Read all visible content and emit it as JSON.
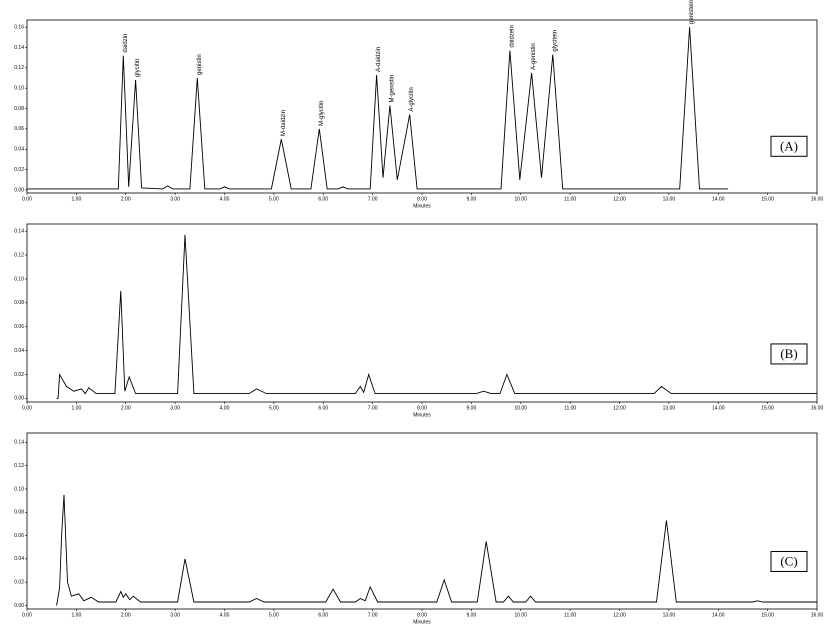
{
  "chart_data": [
    {
      "type": "line",
      "panel_label": "(A)",
      "x_label": "Minutes",
      "xlim": [
        0,
        16
      ],
      "ylim": [
        -0.003,
        0.167
      ],
      "xticks": [
        {
          "value": 0,
          "label": "0.00"
        },
        {
          "value": 1,
          "label": "1.00"
        },
        {
          "value": 2,
          "label": "2.00"
        },
        {
          "value": 3,
          "label": "3.00"
        },
        {
          "value": 4,
          "label": "4.00"
        },
        {
          "value": 5,
          "label": "5.00"
        },
        {
          "value": 6,
          "label": "6.00"
        },
        {
          "value": 7,
          "label": "7.00"
        },
        {
          "value": 8,
          "label": "8.00"
        },
        {
          "value": 9,
          "label": "9.00"
        },
        {
          "value": 10,
          "label": "10.00"
        },
        {
          "value": 11,
          "label": "11.00"
        },
        {
          "value": 12,
          "label": "12.00"
        },
        {
          "value": 13,
          "label": "13.00"
        },
        {
          "value": 14,
          "label": "14.00"
        },
        {
          "value": 15,
          "label": "15.00"
        },
        {
          "value": 16,
          "label": "16.00"
        }
      ],
      "yticks": [
        {
          "value": 0,
          "label": "0.00"
        },
        {
          "value": 0.02,
          "label": "0.02"
        },
        {
          "value": 0.04,
          "label": "0.04"
        },
        {
          "value": 0.06,
          "label": "0.06"
        },
        {
          "value": 0.08,
          "label": "0.08"
        },
        {
          "value": 0.1,
          "label": "0.10"
        },
        {
          "value": 0.12,
          "label": "0.12"
        },
        {
          "value": 0.14,
          "label": "0.14"
        },
        {
          "value": 0.16,
          "label": "0.16"
        }
      ],
      "color": "#000000",
      "x": [
        0,
        1.85,
        1.95,
        2.06,
        2.2,
        2.32,
        2.75,
        2.85,
        2.95,
        3.3,
        3.45,
        3.6,
        3.9,
        4.0,
        4.1,
        4.95,
        5.15,
        5.35,
        5.75,
        5.92,
        6.08,
        6.3,
        6.4,
        6.5,
        6.95,
        7.08,
        7.21,
        7.35,
        7.5,
        7.75,
        7.9,
        9.6,
        9.78,
        9.98,
        10.22,
        10.42,
        10.65,
        10.85,
        13.22,
        13.42,
        13.62,
        14.2
      ],
      "values": [
        0.001,
        0.001,
        0.132,
        0.003,
        0.108,
        0.002,
        0.001,
        0.004,
        0.001,
        0.001,
        0.11,
        0.001,
        0.001,
        0.003,
        0.001,
        0.001,
        0.05,
        0.001,
        0.001,
        0.06,
        0.001,
        0.001,
        0.003,
        0.001,
        0.001,
        0.113,
        0.012,
        0.083,
        0.01,
        0.074,
        0.001,
        0.001,
        0.137,
        0.01,
        0.115,
        0.012,
        0.133,
        0.001,
        0.001,
        0.16,
        0.001,
        0.001
      ],
      "annotations": [
        {
          "text": "daidzin",
          "x": 1.95
        },
        {
          "text": "glycitin",
          "x": 2.2
        },
        {
          "text": "genistin",
          "x": 3.45
        },
        {
          "text": "M-daidzin",
          "x": 5.15
        },
        {
          "text": "M-glycitin",
          "x": 5.92
        },
        {
          "text": "A-daidzin",
          "x": 7.08
        },
        {
          "text": "M-genistin",
          "x": 7.35
        },
        {
          "text": "A-glycitin",
          "x": 7.75
        },
        {
          "text": "daidzein",
          "x": 9.78
        },
        {
          "text": "A-genistin",
          "x": 10.22
        },
        {
          "text": "glycitein",
          "x": 10.65
        },
        {
          "text": "genistein",
          "x": 13.42
        }
      ]
    },
    {
      "type": "line",
      "panel_label": "(B)",
      "x_label": "Minutes",
      "xlim": [
        0,
        16
      ],
      "ylim": [
        -0.003,
        0.146
      ],
      "xticks": [
        {
          "value": 0,
          "label": "0.00"
        },
        {
          "value": 1,
          "label": "1.00"
        },
        {
          "value": 2,
          "label": "2.00"
        },
        {
          "value": 3,
          "label": "3.00"
        },
        {
          "value": 4,
          "label": "4.00"
        },
        {
          "value": 5,
          "label": "5.00"
        },
        {
          "value": 6,
          "label": "6.00"
        },
        {
          "value": 7,
          "label": "7.00"
        },
        {
          "value": 8,
          "label": "8.00"
        },
        {
          "value": 9,
          "label": "9.00"
        },
        {
          "value": 10,
          "label": "10.00"
        },
        {
          "value": 11,
          "label": "11.00"
        },
        {
          "value": 12,
          "label": "12.00"
        },
        {
          "value": 13,
          "label": "13.00"
        },
        {
          "value": 14,
          "label": "14.00"
        },
        {
          "value": 15,
          "label": "15.00"
        },
        {
          "value": 16,
          "label": "16.00"
        }
      ],
      "yticks": [
        {
          "value": 0,
          "label": "0.00"
        },
        {
          "value": 0.02,
          "label": "0.02"
        },
        {
          "value": 0.04,
          "label": "0.04"
        },
        {
          "value": 0.06,
          "label": "0.06"
        },
        {
          "value": 0.08,
          "label": "0.08"
        },
        {
          "value": 0.1,
          "label": "0.10"
        },
        {
          "value": 0.12,
          "label": "0.12"
        },
        {
          "value": 0.14,
          "label": "0.14"
        }
      ],
      "color": "#000000",
      "x": [
        0.6,
        0.63,
        0.66,
        0.8,
        0.95,
        1.1,
        1.18,
        1.25,
        1.4,
        1.78,
        1.9,
        1.98,
        2.07,
        2.2,
        3.05,
        3.2,
        3.38,
        4.5,
        4.65,
        4.85,
        6.65,
        6.75,
        6.82,
        6.92,
        7.05,
        9.1,
        9.25,
        9.4,
        9.58,
        9.72,
        9.88,
        12.7,
        12.85,
        13.05,
        16
      ],
      "values": [
        0,
        0,
        0.02,
        0.01,
        0.006,
        0.008,
        0.004,
        0.009,
        0.004,
        0.004,
        0.09,
        0.006,
        0.018,
        0.004,
        0.004,
        0.137,
        0.004,
        0.004,
        0.008,
        0.004,
        0.004,
        0.01,
        0.005,
        0.02,
        0.004,
        0.004,
        0.006,
        0.004,
        0.004,
        0.02,
        0.004,
        0.004,
        0.01,
        0.004,
        0.004
      ]
    },
    {
      "type": "line",
      "panel_label": "(C)",
      "x_label": "Minutes",
      "xlim": [
        0,
        16
      ],
      "ylim": [
        -0.003,
        0.148
      ],
      "xticks": [
        {
          "value": 0,
          "label": "0.00"
        },
        {
          "value": 1,
          "label": "1.00"
        },
        {
          "value": 2,
          "label": "2.00"
        },
        {
          "value": 3,
          "label": "3.00"
        },
        {
          "value": 4,
          "label": "4.00"
        },
        {
          "value": 5,
          "label": "5.00"
        },
        {
          "value": 6,
          "label": "6.00"
        },
        {
          "value": 7,
          "label": "7.00"
        },
        {
          "value": 8,
          "label": "8.00"
        },
        {
          "value": 9,
          "label": "9.00"
        },
        {
          "value": 10,
          "label": "10.00"
        },
        {
          "value": 11,
          "label": "11.00"
        },
        {
          "value": 12,
          "label": "12.00"
        },
        {
          "value": 13,
          "label": "13.00"
        },
        {
          "value": 14,
          "label": "14.00"
        },
        {
          "value": 15,
          "label": "15.00"
        },
        {
          "value": 16,
          "label": "16.00"
        }
      ],
      "yticks": [
        {
          "value": 0,
          "label": "0.00"
        },
        {
          "value": 0.02,
          "label": "0.02"
        },
        {
          "value": 0.04,
          "label": "0.04"
        },
        {
          "value": 0.06,
          "label": "0.06"
        },
        {
          "value": 0.08,
          "label": "0.08"
        },
        {
          "value": 0.1,
          "label": "0.10"
        },
        {
          "value": 0.12,
          "label": "0.12"
        },
        {
          "value": 0.14,
          "label": "0.14"
        }
      ],
      "color": "#000000",
      "x": [
        0.6,
        0.66,
        0.7,
        0.75,
        0.82,
        0.9,
        1.05,
        1.15,
        1.3,
        1.45,
        1.8,
        1.9,
        1.95,
        2.0,
        2.08,
        2.15,
        2.3,
        3.05,
        3.2,
        3.38,
        4.5,
        4.65,
        4.8,
        6.05,
        6.2,
        6.35,
        6.65,
        6.75,
        6.85,
        6.95,
        7.1,
        8.3,
        8.45,
        8.6,
        9.12,
        9.3,
        9.5,
        9.65,
        9.75,
        9.85,
        10.1,
        10.2,
        10.3,
        12.75,
        12.95,
        13.15,
        14.7,
        14.8,
        14.9,
        16
      ],
      "values": [
        0,
        0.015,
        0.06,
        0.095,
        0.02,
        0.008,
        0.01,
        0.004,
        0.007,
        0.003,
        0.003,
        0.012,
        0.007,
        0.01,
        0.005,
        0.008,
        0.003,
        0.003,
        0.04,
        0.003,
        0.003,
        0.006,
        0.003,
        0.003,
        0.014,
        0.003,
        0.003,
        0.006,
        0.004,
        0.016,
        0.003,
        0.003,
        0.022,
        0.003,
        0.003,
        0.055,
        0.003,
        0.003,
        0.008,
        0.003,
        0.003,
        0.008,
        0.003,
        0.003,
        0.073,
        0.003,
        0.003,
        0.004,
        0.003,
        0.003
      ]
    }
  ]
}
